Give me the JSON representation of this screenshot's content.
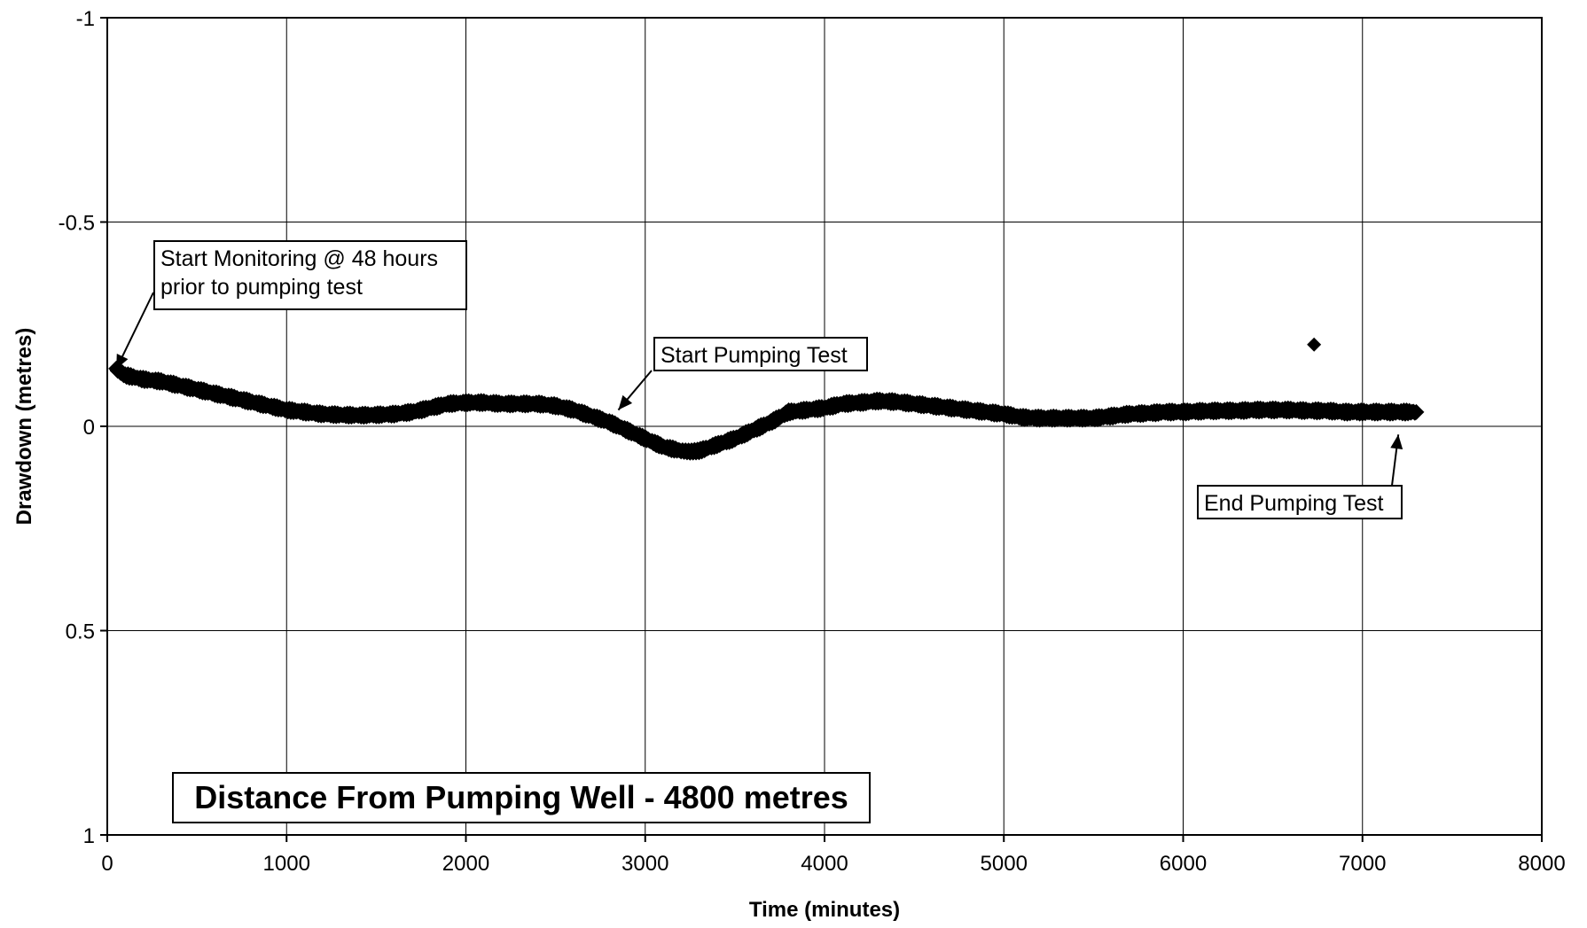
{
  "chart_data": {
    "type": "scatter",
    "title": "Distance From Pumping Well - 4800 metres",
    "xlabel": "Time (minutes)",
    "ylabel": "Drawdown (metres)",
    "xlim": [
      0,
      8000
    ],
    "ylim": [
      1,
      -1
    ],
    "y_axis_inverted": true,
    "grid": true,
    "legend": "none",
    "marker": "diamond",
    "marker_color": "#000000",
    "x_ticks": [
      0,
      1000,
      2000,
      3000,
      4000,
      5000,
      6000,
      7000,
      8000
    ],
    "x_tick_labels": [
      "0",
      "1000",
      "2000",
      "3000",
      "4000",
      "5000",
      "6000",
      "7000",
      "8000"
    ],
    "y_ticks": [
      -1,
      -0.5,
      0,
      0.5,
      1
    ],
    "y_tick_labels": [
      "-1",
      "-0.5",
      "0",
      "0.5",
      "1"
    ],
    "series": [
      {
        "x": [
          50,
          100,
          200,
          300,
          400,
          500,
          600,
          700,
          800,
          900,
          1000,
          1100,
          1200,
          1300,
          1400,
          1500,
          1600,
          1700,
          1800,
          1900,
          2000,
          2100,
          2200,
          2300,
          2400,
          2500,
          2600,
          2700,
          2800,
          2900,
          3000,
          3100,
          3200,
          3250,
          3300,
          3400,
          3500,
          3600,
          3700,
          3800,
          3900,
          4000,
          4100,
          4200,
          4300,
          4400,
          4500,
          4600,
          4700,
          4800,
          4900,
          5000,
          5100,
          5200,
          5300,
          5400,
          5500,
          5600,
          5700,
          5800,
          5900,
          6000,
          6100,
          6200,
          6300,
          6400,
          6500,
          6600,
          6700,
          6800,
          6900,
          7000,
          7100,
          7200,
          7300
        ],
        "y": [
          -0.14,
          -0.125,
          -0.115,
          -0.11,
          -0.1,
          -0.09,
          -0.08,
          -0.07,
          -0.06,
          -0.05,
          -0.04,
          -0.035,
          -0.03,
          -0.028,
          -0.027,
          -0.028,
          -0.03,
          -0.035,
          -0.045,
          -0.055,
          -0.058,
          -0.058,
          -0.055,
          -0.055,
          -0.055,
          -0.05,
          -0.04,
          -0.025,
          -0.01,
          0.01,
          0.03,
          0.05,
          0.06,
          0.062,
          0.06,
          0.045,
          0.03,
          0.01,
          -0.01,
          -0.035,
          -0.04,
          -0.045,
          -0.055,
          -0.058,
          -0.062,
          -0.06,
          -0.055,
          -0.05,
          -0.045,
          -0.04,
          -0.035,
          -0.03,
          -0.022,
          -0.02,
          -0.02,
          -0.02,
          -0.02,
          -0.025,
          -0.03,
          -0.032,
          -0.035,
          -0.035,
          -0.037,
          -0.038,
          -0.038,
          -0.04,
          -0.04,
          -0.04,
          -0.038,
          -0.038,
          -0.035,
          -0.035,
          -0.035,
          -0.035,
          -0.035
        ]
      },
      {
        "x": [
          6730
        ],
        "y": [
          -0.2
        ]
      }
    ],
    "annotations": [
      {
        "lines": [
          "Start Monitoring @ 48 hours",
          "prior to pumping test"
        ],
        "target": [
          50,
          -0.14
        ]
      },
      {
        "lines": [
          "Start Pumping Test"
        ],
        "target": [
          2850,
          -0.04
        ]
      },
      {
        "lines": [
          "End Pumping Test"
        ],
        "target": [
          7200,
          0.02
        ]
      }
    ]
  }
}
